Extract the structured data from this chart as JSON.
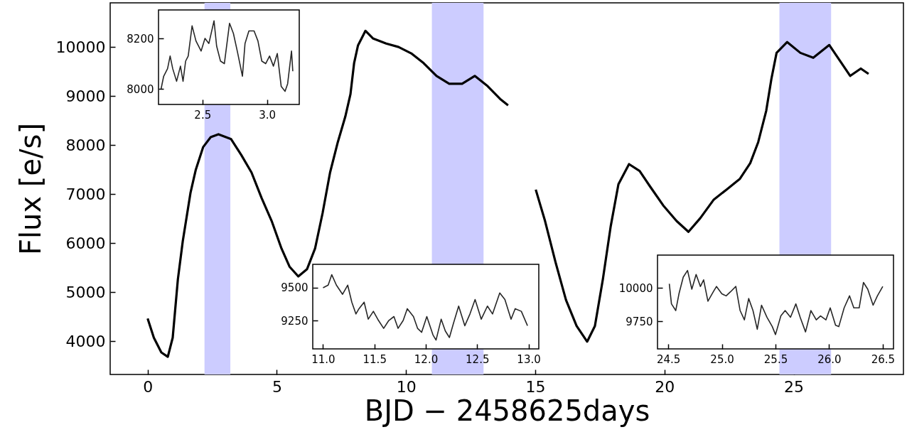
{
  "chart_data": [
    {
      "type": "line",
      "xlabel": "BJD − 2458625days",
      "ylabel": "Flux [e/s]",
      "xlim": [
        -1.45,
        29.25
      ],
      "ylim": [
        3320,
        10900
      ],
      "xticks": [
        0,
        5,
        10,
        15,
        20,
        25
      ],
      "yticks": [
        4000,
        5000,
        6000,
        7000,
        8000,
        9000,
        10000
      ],
      "grid": false,
      "x": [
        0,
        0.24,
        0.53,
        0.78,
        0.97,
        1.17,
        1.36,
        1.66,
        1.86,
        2.15,
        2.44,
        2.74,
        3.23,
        3.62,
        4.02,
        4.41,
        4.8,
        5.18,
        5.49,
        5.83,
        6.17,
        6.48,
        6.77,
        7.06,
        7.36,
        7.65,
        7.85,
        7.99,
        8.14,
        8.43,
        8.73,
        9.23,
        9.71,
        10.2,
        10.68,
        11.18,
        11.67,
        12.17,
        12.66,
        13.16,
        13.64,
        13.95,
        14.5,
        15.02,
        15.38,
        15.79,
        16.19,
        16.6,
        17.01,
        17.31,
        17.62,
        17.92,
        18.22,
        18.63,
        19.04,
        19.45,
        19.95,
        20.47,
        20.93,
        21.39,
        21.9,
        22.4,
        22.92,
        23.32,
        23.63,
        23.94,
        24.14,
        24.34,
        24.75,
        25.26,
        25.76,
        26.38,
        26.79,
        27.19,
        27.6,
        27.9
      ],
      "series": [
        {
          "color": "#000000",
          "values": [
            4460,
            4070,
            3770,
            3680,
            4070,
            5260,
            6040,
            7030,
            7490,
            7960,
            8160,
            8220,
            8120,
            7800,
            7440,
            6920,
            6450,
            5890,
            5520,
            5320,
            5470,
            5890,
            6610,
            7440,
            8060,
            8580,
            9040,
            9670,
            10030,
            10330,
            10170,
            10070,
            10000,
            9870,
            9670,
            9410,
            9250,
            9250,
            9410,
            9200,
            8940,
            8810,
            null,
            7090,
            6450,
            5600,
            4840,
            4310,
            3990,
            4310,
            5270,
            6340,
            7200,
            7610,
            7470,
            7150,
            6770,
            6450,
            6230,
            6510,
            6880,
            7090,
            7310,
            7630,
            8060,
            8700,
            9350,
            9880,
            10100,
            9880,
            9780,
            10040,
            9720,
            9410,
            9560,
            9450
          ]
        }
      ],
      "bands": [
        {
          "axis": "x",
          "from": 2.2,
          "to": 3.2,
          "color": "#ccccff"
        },
        {
          "axis": "x",
          "from": 11.0,
          "to": 13.0,
          "color": "#ccccff"
        },
        {
          "axis": "x",
          "from": 24.45,
          "to": 26.45,
          "color": "#ccccff"
        }
      ]
    },
    {
      "type": "line",
      "xlim": [
        2.16,
        3.25
      ],
      "ylim": [
        7938,
        8313
      ],
      "xticks": [
        2.5,
        {
          "value": 3,
          "label": "3.0"
        }
      ],
      "yticks": [
        8000,
        8200
      ],
      "grid": false,
      "x": [
        2.18,
        2.2,
        2.23,
        2.25,
        2.27,
        2.3,
        2.33,
        2.35,
        2.37,
        2.39,
        2.42,
        2.45,
        2.49,
        2.52,
        2.55,
        2.59,
        2.61,
        2.64,
        2.67,
        2.71,
        2.74,
        2.77,
        2.81,
        2.83,
        2.86,
        2.9,
        2.93,
        2.96,
        2.99,
        3.02,
        3.05,
        3.08,
        3.11,
        3.14,
        3.16,
        3.19,
        3.2
      ],
      "series": [
        {
          "color": "#000000",
          "values": [
            8000,
            8050,
            8080,
            8130,
            8080,
            8030,
            8090,
            8030,
            8110,
            8130,
            8250,
            8190,
            8150,
            8200,
            8180,
            8270,
            8170,
            8110,
            8100,
            8260,
            8220,
            8150,
            8050,
            8180,
            8230,
            8230,
            8190,
            8110,
            8100,
            8130,
            8090,
            8140,
            8010,
            7990,
            8020,
            8150,
            8070
          ]
        }
      ]
    },
    {
      "type": "line",
      "xlim": [
        10.9,
        13.1
      ],
      "ylim": [
        9033,
        9679
      ],
      "xticks": [
        {
          "value": 11,
          "label": "11.0"
        },
        11.5,
        {
          "value": 12,
          "label": "12.0"
        },
        12.5,
        {
          "value": 13,
          "label": "13.0"
        }
      ],
      "yticks": [
        9250,
        9500
      ],
      "grid": false,
      "x": [
        11.0,
        11.05,
        11.085,
        11.13,
        11.19,
        11.24,
        11.28,
        11.32,
        11.35,
        11.4,
        11.44,
        11.49,
        11.54,
        11.59,
        11.64,
        11.69,
        11.73,
        11.78,
        11.82,
        11.88,
        11.92,
        11.96,
        12.01,
        12.07,
        12.1,
        12.15,
        12.19,
        12.23,
        12.27,
        12.32,
        12.38,
        12.43,
        12.48,
        12.54,
        12.6,
        12.65,
        12.72,
        12.77,
        12.83,
        12.87,
        12.93,
        12.99
      ],
      "series": [
        {
          "color": "#000000",
          "values": [
            9500,
            9520,
            9600,
            9520,
            9450,
            9520,
            9390,
            9300,
            9340,
            9390,
            9260,
            9320,
            9250,
            9190,
            9250,
            9280,
            9190,
            9250,
            9340,
            9280,
            9190,
            9160,
            9280,
            9140,
            9100,
            9260,
            9170,
            9120,
            9230,
            9360,
            9210,
            9300,
            9410,
            9260,
            9360,
            9300,
            9460,
            9410,
            9260,
            9340,
            9320,
            9210
          ]
        }
      ]
    },
    {
      "type": "line",
      "xlim": [
        24.4,
        26.6
      ],
      "ylim": [
        9543,
        10245
      ],
      "xticks": [
        24.5,
        {
          "value": 25,
          "label": "25.0"
        },
        25.5,
        {
          "value": 26,
          "label": "26.0"
        },
        26.5
      ],
      "yticks": [
        9750,
        10000
      ],
      "grid": false,
      "x": [
        24.51,
        24.53,
        24.57,
        24.6,
        24.64,
        24.68,
        24.72,
        24.76,
        24.8,
        24.83,
        24.87,
        24.92,
        24.95,
        25.0,
        25.04,
        25.08,
        25.13,
        25.17,
        25.21,
        25.25,
        25.29,
        25.33,
        25.37,
        25.42,
        25.47,
        25.5,
        25.55,
        25.59,
        25.64,
        25.69,
        25.73,
        25.78,
        25.83,
        25.88,
        25.92,
        25.97,
        26.01,
        26.06,
        26.09,
        26.14,
        26.19,
        26.23,
        26.28,
        26.32,
        26.36,
        26.41,
        26.45,
        26.5
      ],
      "series": [
        {
          "color": "#000000",
          "values": [
            10030,
            9880,
            9830,
            9955,
            10080,
            10130,
            9990,
            10100,
            10010,
            10060,
            9900,
            9970,
            10010,
            9955,
            9940,
            9970,
            10010,
            9830,
            9760,
            9920,
            9830,
            9690,
            9870,
            9780,
            9710,
            9650,
            9790,
            9830,
            9780,
            9880,
            9780,
            9670,
            9830,
            9760,
            9790,
            9760,
            9850,
            9720,
            9710,
            9850,
            9940,
            9850,
            9850,
            10040,
            9990,
            9870,
            9940,
            10010
          ]
        }
      ]
    }
  ]
}
